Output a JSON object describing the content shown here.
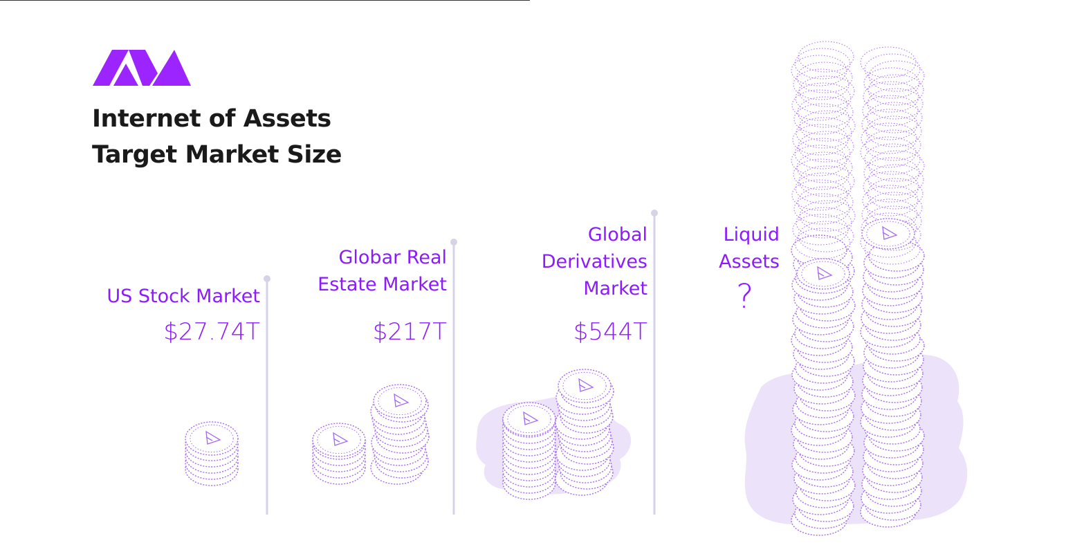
{
  "title": {
    "line1": "Internet of Assets",
    "line2": "Target Market Size"
  },
  "logo": {
    "icon": "avalanche-logo"
  },
  "colors": {
    "accent": "#8c1aff",
    "pole": "#d6d2e8",
    "blob": "#ece3fb",
    "coin_stroke": "#a468ee",
    "title": "#1a1a1a"
  },
  "chart_data": {
    "type": "bar",
    "title": "Internet of Assets Target Market Size",
    "categories": [
      "US Stock Market",
      "Globar Real Estate Market",
      "Global Derivatives Market",
      "Liquid Assets"
    ],
    "value_labels": [
      "$27.74T",
      "$217T",
      "$544T",
      "?"
    ],
    "values": [
      27.74,
      217,
      544,
      null
    ],
    "unit": "T"
  },
  "markets": [
    {
      "label_lines": [
        "US Stock Market"
      ],
      "value": "$27.74T"
    },
    {
      "label_lines": [
        "Globar Real",
        "Estate Market"
      ],
      "value": "$217T"
    },
    {
      "label_lines": [
        "Global",
        "Derivatives",
        "Market"
      ],
      "value": "$544T"
    },
    {
      "label_lines": [
        "Liquid",
        "Assets"
      ],
      "value": "?"
    }
  ]
}
